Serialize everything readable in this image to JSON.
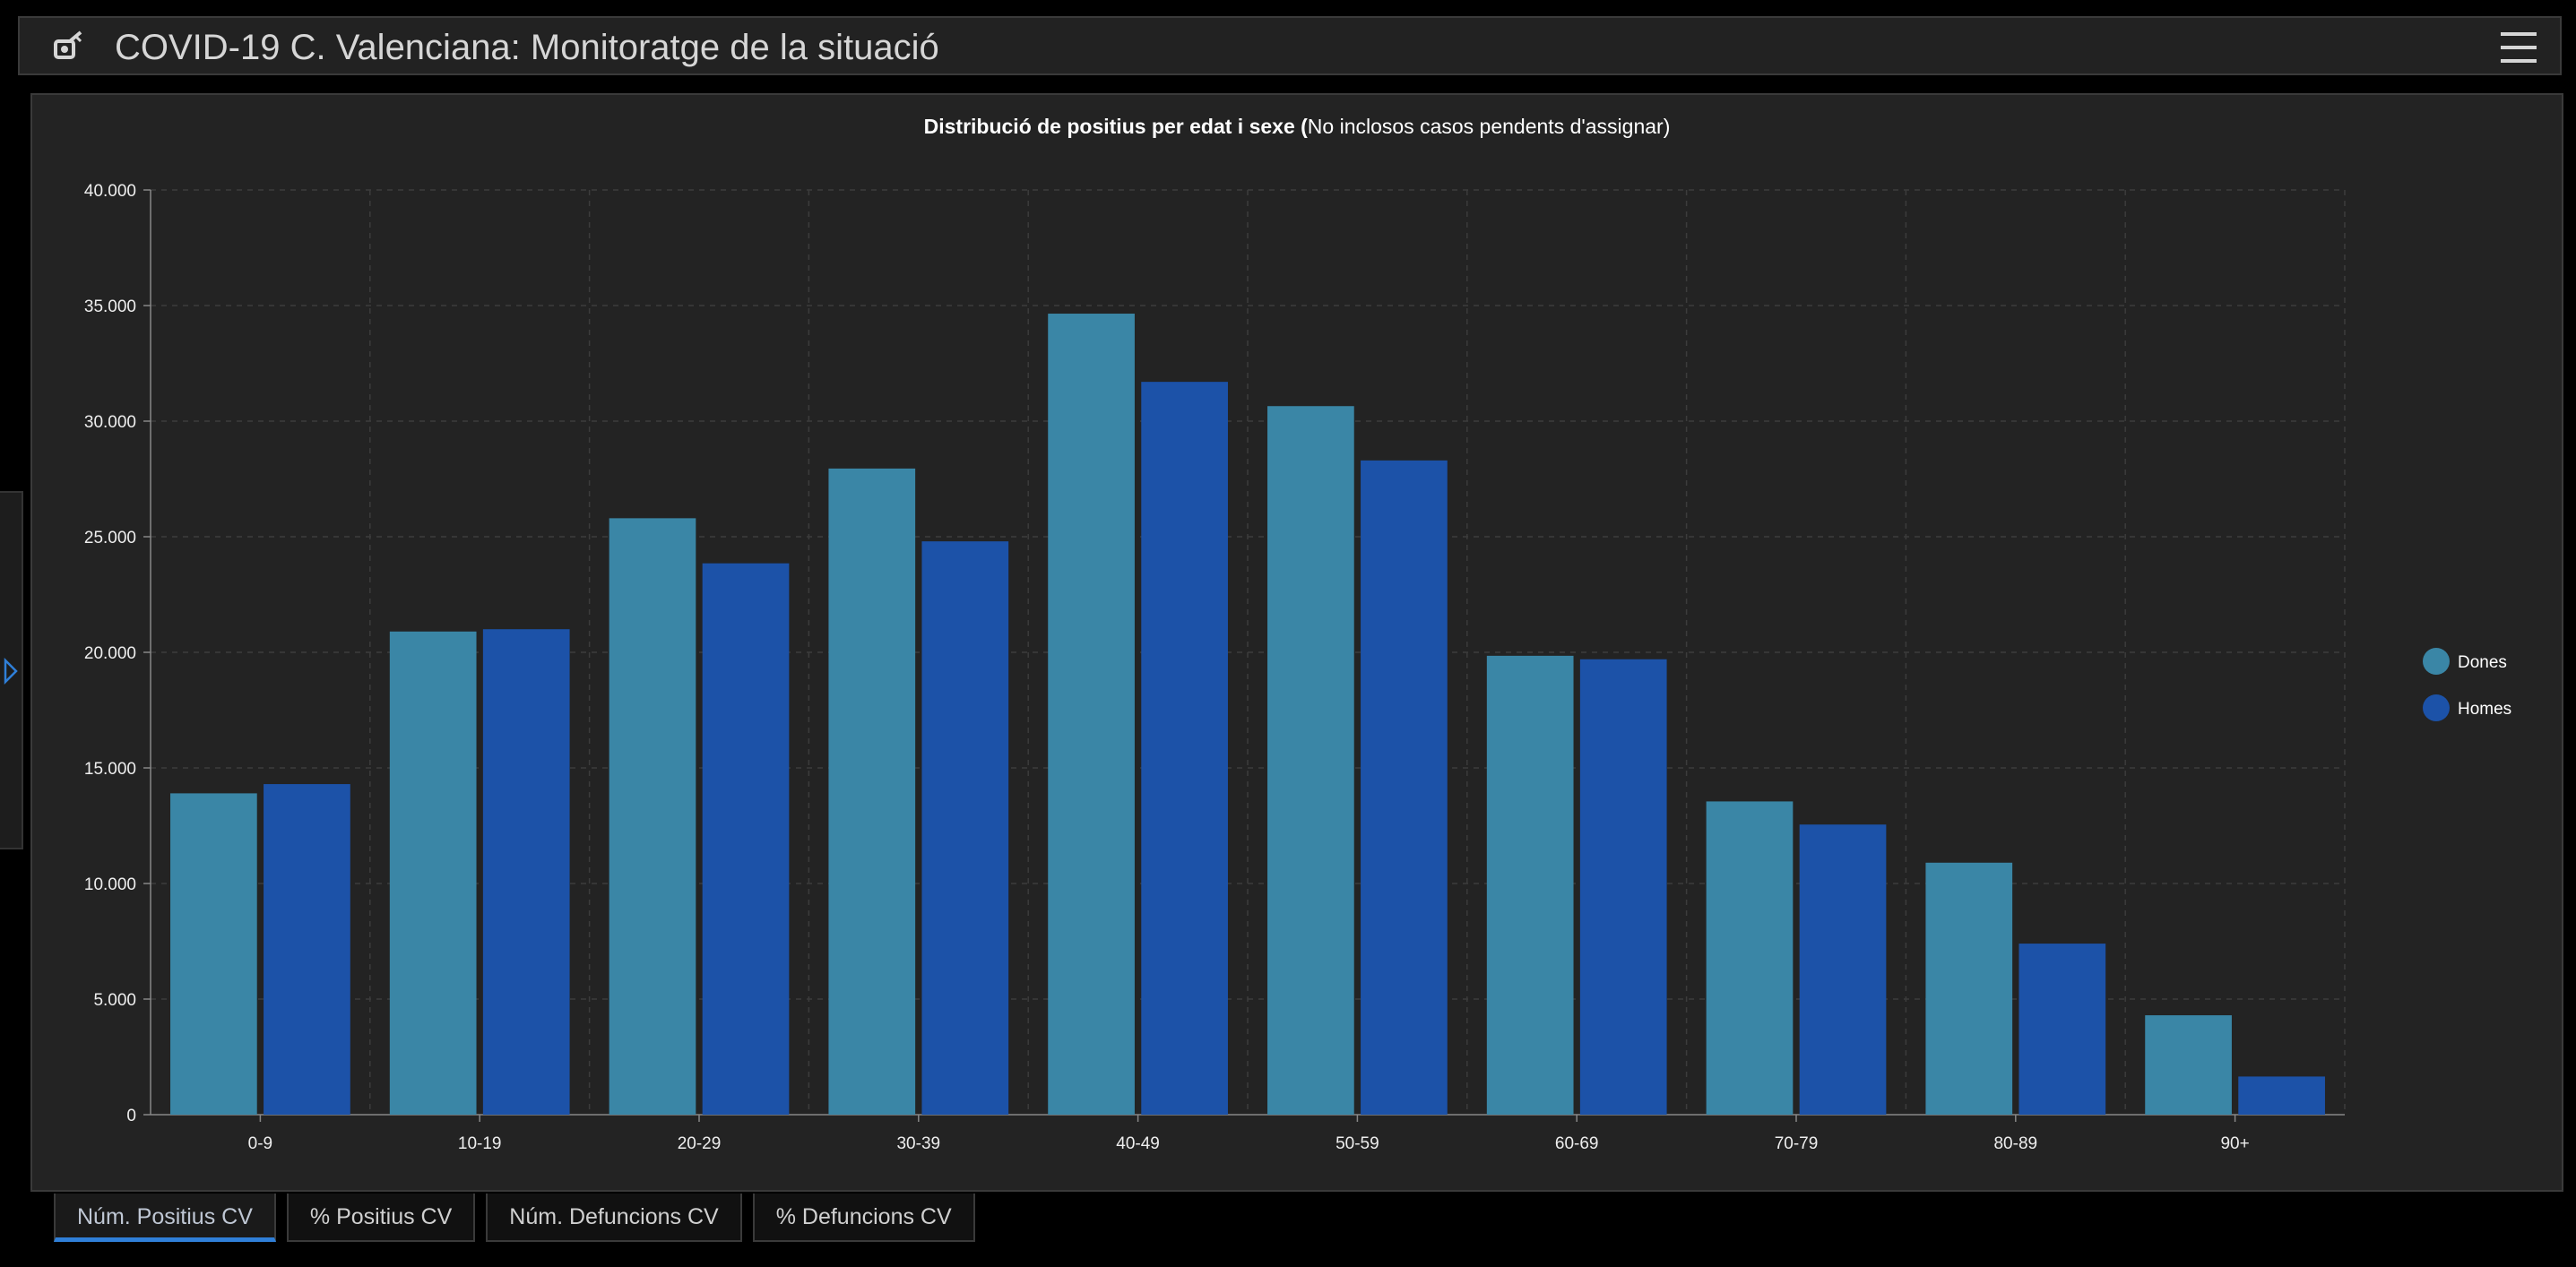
{
  "app": {
    "title": "COVID-19 C. Valenciana: Monitoratge de la situació",
    "logo_icon": "virus-logo-icon",
    "menu_icon": "hamburger-menu-icon"
  },
  "tabs": [
    {
      "label": "Núm. Positius CV",
      "active": true
    },
    {
      "label": "% Positius CV",
      "active": false
    },
    {
      "label": "Núm. Defuncions CV",
      "active": false
    },
    {
      "label": "% Defuncions CV",
      "active": false
    }
  ],
  "colors": {
    "dones": "#3a86a6",
    "homes": "#1c52a8",
    "accent": "#2f7fd8"
  },
  "chart_data": {
    "type": "bar",
    "title_bold": "Distribució de positius per edat i sexe (",
    "title_normal": "No inclosos casos pendents d'assignar)",
    "categories": [
      "0-9",
      "10-19",
      "20-29",
      "30-39",
      "40-49",
      "50-59",
      "60-69",
      "70-79",
      "80-89",
      "90+"
    ],
    "series": [
      {
        "name": "Dones",
        "values": [
          13900,
          20900,
          25800,
          27950,
          34650,
          30650,
          19850,
          13550,
          10900,
          4300
        ]
      },
      {
        "name": "Homes",
        "values": [
          14300,
          21000,
          23850,
          24800,
          31700,
          28300,
          19700,
          12550,
          7400,
          1650
        ]
      }
    ],
    "ylim": [
      0,
      40000
    ],
    "yticks": [
      0,
      5000,
      10000,
      15000,
      20000,
      25000,
      30000,
      35000,
      40000
    ],
    "ytick_labels": [
      "0",
      "5.000",
      "10.000",
      "15.000",
      "20.000",
      "25.000",
      "30.000",
      "35.000",
      "40.000"
    ],
    "grid": true,
    "legend_position": "right"
  }
}
